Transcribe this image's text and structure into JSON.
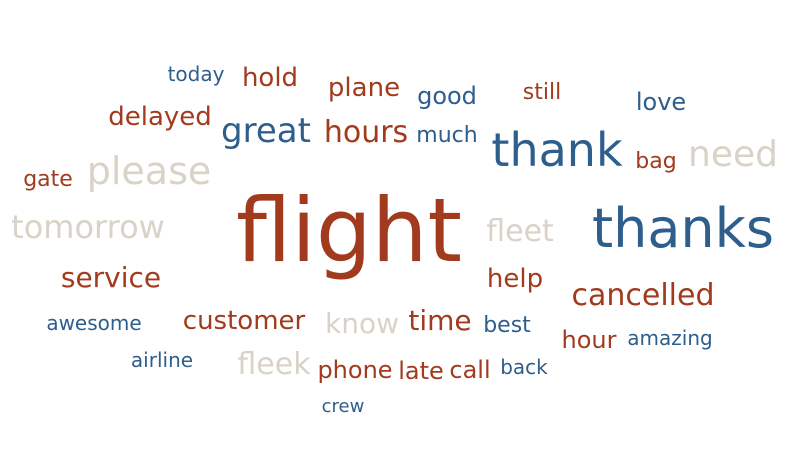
{
  "colors": {
    "red": "#a23b1e",
    "blue": "#2e5e8c",
    "grey": "#d9d3c7"
  },
  "words": [
    {
      "text": "flight",
      "tone": "red"
    },
    {
      "text": "thanks",
      "tone": "blue"
    },
    {
      "text": "thank",
      "tone": "blue"
    },
    {
      "text": "please",
      "tone": "grey"
    },
    {
      "text": "great",
      "tone": "blue"
    },
    {
      "text": "hours",
      "tone": "red"
    },
    {
      "text": "tomorrow",
      "tone": "grey"
    },
    {
      "text": "cancelled",
      "tone": "red"
    },
    {
      "text": "need",
      "tone": "grey"
    },
    {
      "text": "service",
      "tone": "red"
    },
    {
      "text": "fleet",
      "tone": "grey"
    },
    {
      "text": "customer",
      "tone": "red"
    },
    {
      "text": "know",
      "tone": "grey"
    },
    {
      "text": "time",
      "tone": "red"
    },
    {
      "text": "fleek",
      "tone": "grey"
    },
    {
      "text": "delayed",
      "tone": "red"
    },
    {
      "text": "plane",
      "tone": "red"
    },
    {
      "text": "hold",
      "tone": "red"
    },
    {
      "text": "love",
      "tone": "blue"
    },
    {
      "text": "good",
      "tone": "blue"
    },
    {
      "text": "much",
      "tone": "blue"
    },
    {
      "text": "help",
      "tone": "red"
    },
    {
      "text": "still",
      "tone": "red"
    },
    {
      "text": "bag",
      "tone": "red"
    },
    {
      "text": "gate",
      "tone": "red"
    },
    {
      "text": "today",
      "tone": "blue"
    },
    {
      "text": "awesome",
      "tone": "blue"
    },
    {
      "text": "best",
      "tone": "blue"
    },
    {
      "text": "hour",
      "tone": "red"
    },
    {
      "text": "amazing",
      "tone": "blue"
    },
    {
      "text": "airline",
      "tone": "blue"
    },
    {
      "text": "phone",
      "tone": "red"
    },
    {
      "text": "late",
      "tone": "red"
    },
    {
      "text": "call",
      "tone": "red"
    },
    {
      "text": "back",
      "tone": "blue"
    },
    {
      "text": "crew",
      "tone": "blue"
    }
  ]
}
